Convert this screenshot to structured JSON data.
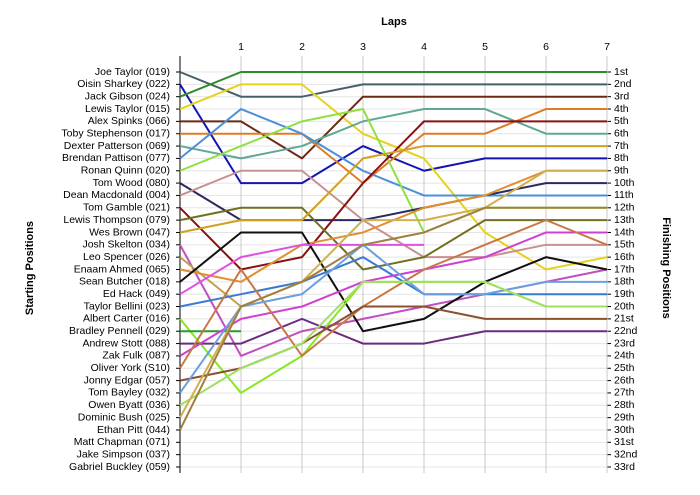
{
  "chart_data": {
    "type": "line",
    "xlabel": "Laps",
    "ylabel": "Starting Positions",
    "y2label": "Finishing Positions",
    "x": [
      0,
      1,
      2,
      3,
      4,
      5,
      6,
      7
    ],
    "xlim": [
      0,
      7
    ],
    "xticks": [
      1,
      2,
      3,
      4,
      5,
      6,
      7
    ],
    "ylim": [
      1,
      33
    ],
    "y_inverted": true,
    "grid": true,
    "yticks": [
      {
        "value": 1,
        "label": "1st"
      },
      {
        "value": 2,
        "label": "2nd"
      },
      {
        "value": 3,
        "label": "3rd"
      },
      {
        "value": 4,
        "label": "4th"
      },
      {
        "value": 5,
        "label": "5th"
      },
      {
        "value": 6,
        "label": "6th"
      },
      {
        "value": 7,
        "label": "7th"
      },
      {
        "value": 8,
        "label": "8th"
      },
      {
        "value": 9,
        "label": "9th"
      },
      {
        "value": 10,
        "label": "10th"
      },
      {
        "value": 11,
        "label": "11th"
      },
      {
        "value": 12,
        "label": "12th"
      },
      {
        "value": 13,
        "label": "13th"
      },
      {
        "value": 14,
        "label": "14th"
      },
      {
        "value": 15,
        "label": "15th"
      },
      {
        "value": 16,
        "label": "16th"
      },
      {
        "value": 17,
        "label": "17th"
      },
      {
        "value": 18,
        "label": "18th"
      },
      {
        "value": 19,
        "label": "19th"
      },
      {
        "value": 20,
        "label": "20th"
      },
      {
        "value": 21,
        "label": "21st"
      },
      {
        "value": 22,
        "label": "22nd"
      },
      {
        "value": 23,
        "label": "23rd"
      },
      {
        "value": 24,
        "label": "24th"
      },
      {
        "value": 25,
        "label": "25th"
      },
      {
        "value": 26,
        "label": "26th"
      },
      {
        "value": 27,
        "label": "27th"
      },
      {
        "value": 28,
        "label": "28th"
      },
      {
        "value": 29,
        "label": "29th"
      },
      {
        "value": 30,
        "label": "30th"
      },
      {
        "value": 31,
        "label": "31st"
      },
      {
        "value": 32,
        "label": "32nd"
      },
      {
        "value": 33,
        "label": "33rd"
      }
    ],
    "series": [
      {
        "name": "Joe Taylor (019)",
        "color": "#46606a",
        "values": [
          1,
          3,
          3,
          2,
          2,
          2,
          2,
          2
        ]
      },
      {
        "name": "Oisin Sharkey (022)",
        "color": "#1414b4",
        "values": [
          2,
          10,
          10,
          7,
          9,
          8,
          8,
          8
        ]
      },
      {
        "name": "Jack Gibson (024)",
        "color": "#2e8b2e",
        "values": [
          3,
          1,
          1,
          1,
          1,
          1,
          1,
          1
        ]
      },
      {
        "name": "Lewis Taylor (015)",
        "color": "#e6d21e",
        "values": [
          4,
          2,
          2,
          6,
          8,
          14,
          17,
          16
        ]
      },
      {
        "name": "Alex Spinks (066)",
        "color": "#6b2a14",
        "values": [
          5,
          5,
          8,
          3,
          3,
          3,
          3,
          3
        ]
      },
      {
        "name": "Toby Stephenson (017)",
        "color": "#e07b28",
        "values": [
          6,
          6,
          6,
          10,
          6,
          6,
          4,
          4
        ]
      },
      {
        "name": "Dexter Patterson (069)",
        "color": "#5fa898",
        "values": [
          7,
          8,
          7,
          5,
          4,
          4,
          6,
          6
        ]
      },
      {
        "name": "Brendan Pattison (077)",
        "color": "#4a90d9",
        "values": [
          8,
          4,
          6,
          9,
          11,
          11,
          11,
          11
        ]
      },
      {
        "name": "Ronan Quinn (020)",
        "color": "#90e040",
        "values": [
          9,
          7,
          5,
          4,
          14,
          12,
          12,
          12
        ]
      },
      {
        "name": "Tom Wood (080)",
        "color": "#2a2a60",
        "values": [
          10,
          13,
          13,
          13,
          12,
          11,
          10,
          10
        ]
      },
      {
        "name": "Dean Macdonald (004)",
        "color": "#c89090",
        "values": [
          11,
          9,
          9,
          13,
          16,
          16,
          15,
          15
        ]
      },
      {
        "name": "Tom Gamble (021)",
        "color": "#8b1010",
        "values": [
          12,
          17,
          16,
          10,
          5,
          5,
          5,
          5
        ]
      },
      {
        "name": "Lewis Thompson (079)",
        "color": "#707020",
        "values": [
          13,
          12,
          12,
          17,
          16,
          13,
          13,
          13
        ]
      },
      {
        "name": "Wes Brown (047)",
        "color": "#d0a020",
        "values": [
          14,
          13,
          13,
          8,
          7,
          7,
          7,
          7
        ]
      },
      {
        "name": "Josh Skelton (034)",
        "color": "#c050c0",
        "values": [
          15,
          24,
          22,
          21,
          20,
          19,
          18,
          17
        ]
      },
      {
        "name": "Leo Spencer (026)",
        "color": "#c0a050",
        "values": [
          16,
          20,
          19,
          null,
          null,
          null,
          null,
          null
        ]
      },
      {
        "name": "Enaam Ahmed (065)",
        "color": "#e09030",
        "values": [
          17,
          18,
          15,
          14,
          12,
          11,
          9,
          9
        ]
      },
      {
        "name": "Sean Butcher (018)",
        "color": "#101010",
        "values": [
          18,
          14,
          14,
          22,
          21,
          18,
          16,
          17
        ]
      },
      {
        "name": "Ed Hack (049)",
        "color": "#e050e0",
        "values": [
          19,
          16,
          15,
          15,
          15,
          null,
          null,
          null
        ]
      },
      {
        "name": "Taylor Bellini (023)",
        "color": "#3a7ad0",
        "values": [
          20,
          19,
          18,
          16,
          19,
          19,
          19,
          19
        ]
      },
      {
        "name": "Albert Carter (016)",
        "color": "#88e820",
        "values": [
          21,
          27,
          24,
          18,
          18,
          18,
          20,
          20
        ]
      },
      {
        "name": "Bradley Pennell (029)",
        "color": "#2a9a2a",
        "values": [
          22,
          22,
          null,
          null,
          null,
          null,
          null,
          null
        ]
      },
      {
        "name": "Andrew Stott (088)",
        "color": "#6a2a80",
        "values": [
          23,
          23,
          21,
          23,
          23,
          22,
          22,
          22
        ]
      },
      {
        "name": "Zak Fulk (087)",
        "color": "#d040d0",
        "values": [
          24,
          21,
          20,
          18,
          17,
          16,
          14,
          14
        ]
      },
      {
        "name": "Oliver York (S10)",
        "color": "#c87848",
        "values": [
          25,
          17,
          24,
          20,
          17,
          15,
          13,
          15
        ]
      },
      {
        "name": "Jonny Edgar (057)",
        "color": "#8a5030",
        "values": [
          26,
          25,
          23,
          20,
          20,
          21,
          21,
          21
        ]
      },
      {
        "name": "Tom Bayley (032)",
        "color": "#6aa0e0",
        "values": [
          27,
          20,
          19,
          15,
          19,
          19,
          18,
          18
        ]
      },
      {
        "name": "Owen Byatt (036)",
        "color": "#a0e060",
        "values": [
          28,
          25,
          23,
          18,
          18,
          18,
          20,
          20
        ]
      },
      {
        "name": "Dominic Bush (025)",
        "color": "#d0b050",
        "values": [
          29,
          20,
          18,
          13,
          13,
          12,
          9,
          9
        ]
      },
      {
        "name": "Ethan Pitt (044)",
        "color": "#a08040",
        "values": [
          30,
          20,
          18,
          15,
          14,
          12,
          12,
          12
        ]
      },
      {
        "name": "Matt Chapman (071)",
        "color": "#808080",
        "values": [
          31,
          null,
          null,
          null,
          null,
          null,
          null,
          null
        ]
      },
      {
        "name": "Jake Simpson (037)",
        "color": "#808080",
        "values": [
          32,
          null,
          null,
          null,
          null,
          null,
          null,
          null
        ]
      },
      {
        "name": "Gabriel Buckley (059)",
        "color": "#808080",
        "values": [
          33,
          null,
          null,
          null,
          null,
          null,
          null,
          null
        ]
      }
    ]
  }
}
